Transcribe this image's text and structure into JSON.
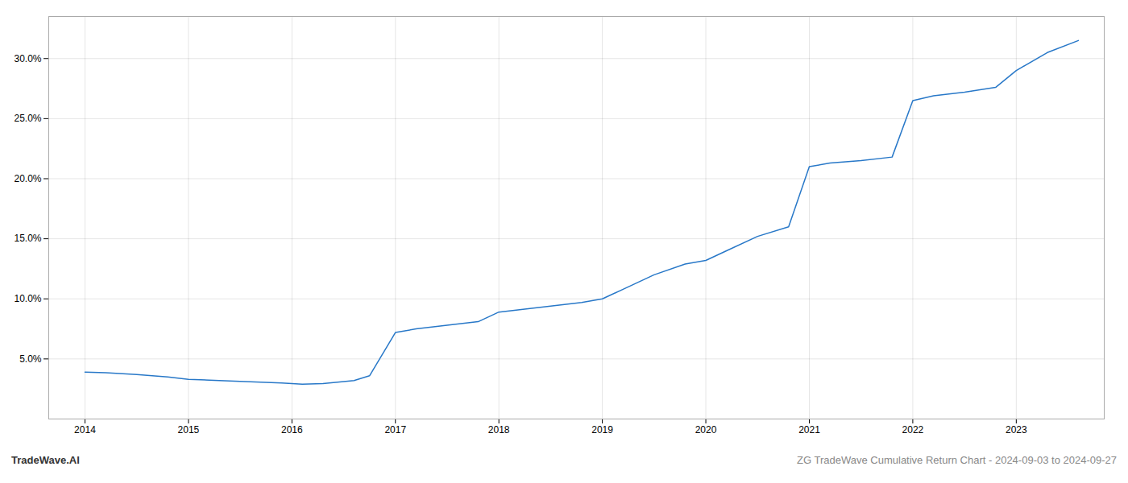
{
  "chart_data": {
    "type": "line",
    "title": "ZG TradeWave Cumulative Return Chart - 2024-09-03 to 2024-09-27",
    "annotations": [
      "TradeWave.AI"
    ],
    "x": [
      2014.0,
      2014.2,
      2014.5,
      2014.8,
      2015.0,
      2015.3,
      2015.6,
      2015.9,
      2016.0,
      2016.1,
      2016.3,
      2016.6,
      2016.75,
      2017.0,
      2017.2,
      2017.4,
      2017.6,
      2017.8,
      2018.0,
      2018.2,
      2018.5,
      2018.8,
      2019.0,
      2019.2,
      2019.5,
      2019.8,
      2020.0,
      2020.2,
      2020.5,
      2020.8,
      2021.0,
      2021.2,
      2021.5,
      2021.8,
      2022.0,
      2022.2,
      2022.5,
      2022.8,
      2023.0,
      2023.3,
      2023.6
    ],
    "values": [
      3.9,
      3.85,
      3.7,
      3.5,
      3.3,
      3.2,
      3.1,
      3.0,
      2.95,
      2.9,
      2.95,
      3.2,
      3.6,
      7.2,
      7.5,
      7.7,
      7.9,
      8.1,
      8.9,
      9.1,
      9.4,
      9.7,
      10.0,
      10.8,
      12.0,
      12.9,
      13.2,
      14.0,
      15.2,
      16.0,
      21.0,
      21.3,
      21.5,
      21.8,
      26.5,
      26.9,
      27.2,
      27.6,
      29.0,
      30.5,
      31.5
    ],
    "color": "#2878c8",
    "xlim": [
      2013.65,
      2023.85
    ],
    "xticks": [
      2014,
      2015,
      2016,
      2017,
      2018,
      2019,
      2020,
      2021,
      2022,
      2023
    ],
    "ylim": [
      0.0,
      33.5
    ],
    "yticks": [
      {
        "value": 5.0,
        "label": "5.0%"
      },
      {
        "value": 10.0,
        "label": "10.0%"
      },
      {
        "value": 15.0,
        "label": "15.0%"
      },
      {
        "value": 20.0,
        "label": "20.0%"
      },
      {
        "value": 25.0,
        "label": "25.0%"
      },
      {
        "value": 30.0,
        "label": "30.0%"
      }
    ],
    "grid": true
  }
}
